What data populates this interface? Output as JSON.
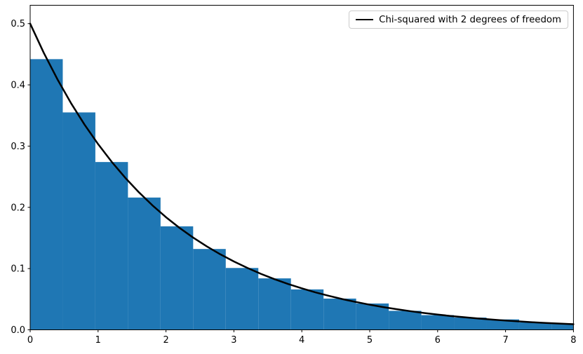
{
  "chart_data": {
    "type": "bar",
    "subtype": "histogram_with_pdf_overlay",
    "title": "",
    "xlabel": "",
    "ylabel": "",
    "xlim": [
      0,
      8
    ],
    "ylim": [
      0,
      0.53
    ],
    "grid": false,
    "x_tick_values": [
      0,
      1,
      2,
      3,
      4,
      5,
      6,
      7,
      8
    ],
    "x_tick_labels": [
      "0",
      "1",
      "2",
      "3",
      "4",
      "5",
      "6",
      "7",
      "8"
    ],
    "y_tick_values": [
      0.0,
      0.1,
      0.2,
      0.3,
      0.4,
      0.5
    ],
    "y_tick_labels": [
      "0.0",
      "0.1",
      "0.2",
      "0.3",
      "0.4",
      "0.5"
    ],
    "histogram": {
      "color": "#1f77b4",
      "bin_start": 0,
      "bin_width": 0.48,
      "values": [
        0.442,
        0.355,
        0.274,
        0.216,
        0.169,
        0.132,
        0.101,
        0.084,
        0.066,
        0.051,
        0.043,
        0.031,
        0.024,
        0.02,
        0.017,
        0.012,
        0.01
      ]
    },
    "curve": {
      "label": "Chi-squared with 2 degrees of freedom",
      "color": "#000000",
      "linewidth": 2.5,
      "points": [
        [
          0.0,
          0.5
        ],
        [
          0.2,
          0.4524
        ],
        [
          0.4,
          0.4094
        ],
        [
          0.6,
          0.3704
        ],
        [
          0.8,
          0.3352
        ],
        [
          1.0,
          0.3033
        ],
        [
          1.2,
          0.2744
        ],
        [
          1.4,
          0.2483
        ],
        [
          1.6,
          0.2247
        ],
        [
          1.8,
          0.2033
        ],
        [
          2.0,
          0.1839
        ],
        [
          2.2,
          0.1664
        ],
        [
          2.4,
          0.1506
        ],
        [
          2.6,
          0.1363
        ],
        [
          2.8,
          0.1233
        ],
        [
          3.0,
          0.1116
        ],
        [
          3.2,
          0.101
        ],
        [
          3.4,
          0.0913
        ],
        [
          3.6,
          0.0826
        ],
        [
          3.8,
          0.0748
        ],
        [
          4.0,
          0.0677
        ],
        [
          4.2,
          0.0612
        ],
        [
          4.4,
          0.0554
        ],
        [
          4.6,
          0.0501
        ],
        [
          4.8,
          0.0454
        ],
        [
          5.0,
          0.041
        ],
        [
          5.2,
          0.0371
        ],
        [
          5.4,
          0.0336
        ],
        [
          5.6,
          0.0304
        ],
        [
          5.8,
          0.0275
        ],
        [
          6.0,
          0.0249
        ],
        [
          6.2,
          0.0225
        ],
        [
          6.4,
          0.0204
        ],
        [
          6.6,
          0.0184
        ],
        [
          6.8,
          0.0167
        ],
        [
          7.0,
          0.0151
        ],
        [
          7.2,
          0.0137
        ],
        [
          7.4,
          0.0123
        ],
        [
          7.6,
          0.0112
        ],
        [
          7.8,
          0.0101
        ],
        [
          8.0,
          0.0092
        ]
      ]
    },
    "legend": {
      "position": "upper right",
      "entries": [
        {
          "label": "Chi-squared with 2 degrees of freedom",
          "swatch": "line",
          "color": "#000000"
        }
      ]
    }
  }
}
